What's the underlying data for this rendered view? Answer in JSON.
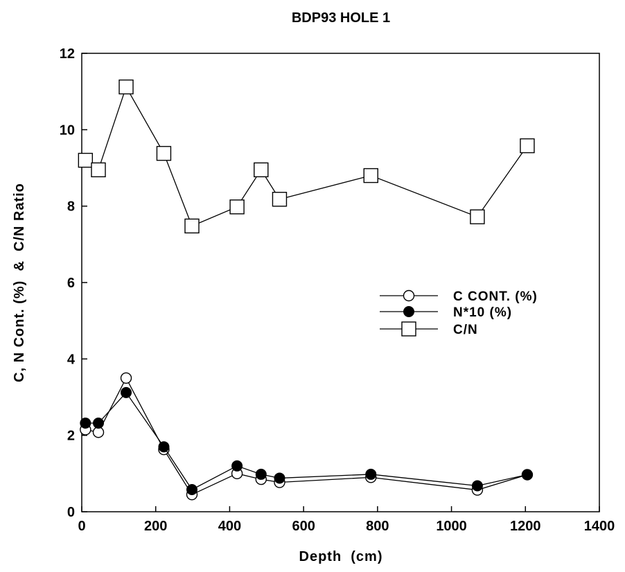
{
  "chart_data": {
    "type": "line",
    "title": "BDP93 HOLE 1",
    "xlabel": "Depth  (cm)",
    "ylabel": "C, N Cont. (%)  &  C/N Ratio",
    "xlim": [
      0,
      1400
    ],
    "ylim": [
      0,
      12
    ],
    "xticks": [
      "0",
      "200",
      "400",
      "600",
      "800",
      "1000",
      "1200",
      "1400"
    ],
    "yticks": [
      "0",
      "2",
      "4",
      "6",
      "8",
      "10",
      "12"
    ],
    "grid": false,
    "legend_position": "right-middle",
    "series": [
      {
        "name": "C CONT. (%)",
        "marker": "open-circle",
        "points": [
          [
            10,
            2.15
          ],
          [
            45,
            2.08
          ],
          [
            120,
            3.5
          ],
          [
            222,
            1.63
          ],
          [
            298,
            0.45
          ],
          [
            420,
            1.0
          ],
          [
            485,
            0.85
          ],
          [
            535,
            0.77
          ],
          [
            782,
            0.9
          ],
          [
            1070,
            0.57
          ],
          [
            1205,
            0.97
          ]
        ]
      },
      {
        "name": "N*10 (%)",
        "marker": "filled-circle",
        "points": [
          [
            10,
            2.32
          ],
          [
            45,
            2.32
          ],
          [
            120,
            3.12
          ],
          [
            222,
            1.7
          ],
          [
            298,
            0.58
          ],
          [
            420,
            1.2
          ],
          [
            485,
            0.98
          ],
          [
            535,
            0.88
          ],
          [
            782,
            0.98
          ],
          [
            1070,
            0.68
          ],
          [
            1205,
            0.97
          ]
        ]
      },
      {
        "name": "C/N",
        "marker": "open-square",
        "points": [
          [
            10,
            9.2
          ],
          [
            45,
            8.95
          ],
          [
            120,
            11.12
          ],
          [
            222,
            9.38
          ],
          [
            298,
            7.48
          ],
          [
            420,
            7.98
          ],
          [
            485,
            8.95
          ],
          [
            535,
            8.18
          ],
          [
            782,
            8.8
          ],
          [
            1070,
            7.72
          ],
          [
            1205,
            9.58
          ]
        ]
      }
    ]
  }
}
